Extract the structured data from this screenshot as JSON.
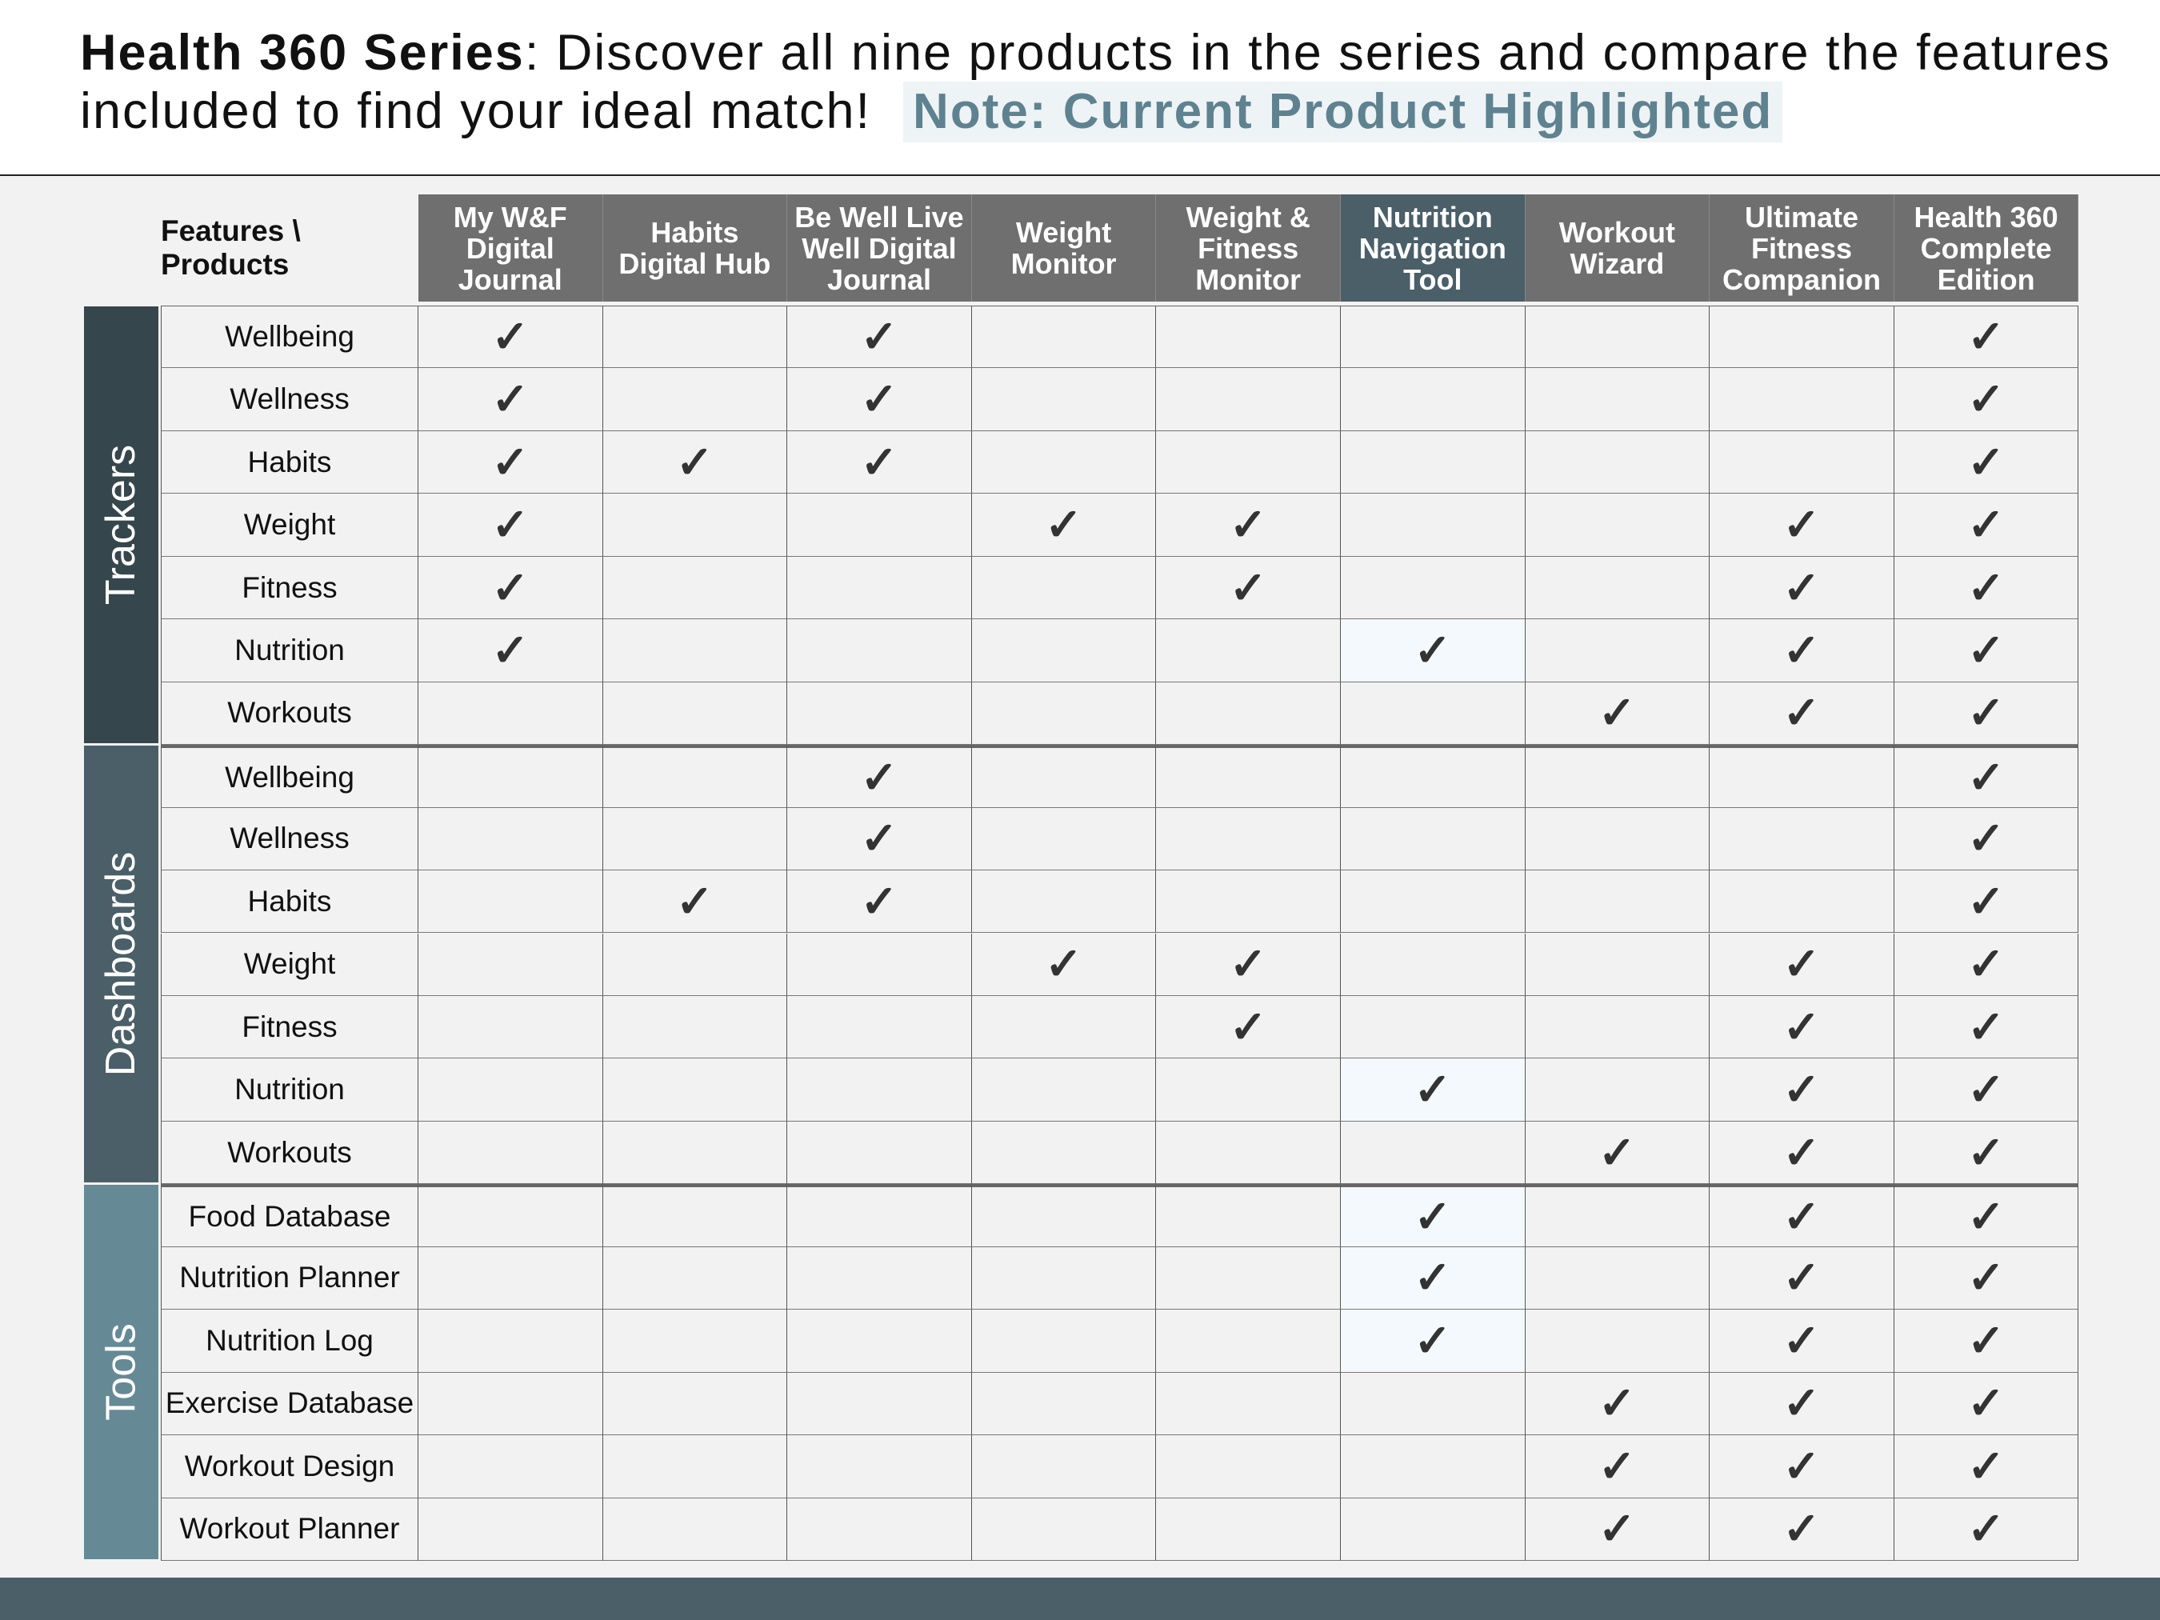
{
  "header": {
    "title_bold": "Health 360 Series",
    "title_rest": ": Discover all nine products in the series and compare the features included to find your ideal match!",
    "note": "Note: Current Product Highlighted"
  },
  "table": {
    "corner": "Features \\ Products",
    "highlight": 5,
    "columns": [
      "My W&F Digital Journal",
      "Habits Digital Hub",
      "Be Well Live Well Digital Journal",
      "Weight Monitor",
      "Weight & Fitness Monitor",
      "Nutrition Navigation Tool",
      "Workout Wizard",
      "Ultimate Fitness Companion",
      "Health 360 Complete Edition"
    ],
    "groups": [
      {
        "name": "Trackers",
        "color": "#36464d",
        "rows": [
          {
            "feature": "Wellbeing",
            "cells": [
              "✓",
              null,
              "✓",
              null,
              null,
              null,
              null,
              null,
              "✓"
            ]
          },
          {
            "feature": "Wellness",
            "cells": [
              "✓",
              null,
              "✓",
              null,
              null,
              null,
              null,
              null,
              "✓"
            ]
          },
          {
            "feature": "Habits",
            "cells": [
              "✓",
              "✓",
              "✓",
              null,
              null,
              null,
              null,
              null,
              "✓"
            ]
          },
          {
            "feature": "Weight",
            "cells": [
              "✓",
              null,
              null,
              "✓",
              "✓",
              null,
              null,
              "✓",
              "✓"
            ]
          },
          {
            "feature": "Fitness",
            "cells": [
              "✓",
              null,
              null,
              null,
              "✓",
              null,
              null,
              "✓",
              "✓"
            ]
          },
          {
            "feature": "Nutrition",
            "cells": [
              "✓",
              null,
              null,
              null,
              null,
              "✓",
              null,
              "✓",
              "✓"
            ]
          },
          {
            "feature": "Workouts",
            "cells": [
              null,
              null,
              null,
              null,
              null,
              null,
              "✓",
              "✓",
              "✓"
            ]
          }
        ]
      },
      {
        "name": "Dashboards",
        "color": "#4a5f68",
        "rows": [
          {
            "feature": "Wellbeing",
            "cells": [
              null,
              null,
              "✓",
              null,
              null,
              null,
              null,
              null,
              "✓"
            ]
          },
          {
            "feature": "Wellness",
            "cells": [
              null,
              null,
              "✓",
              null,
              null,
              null,
              null,
              null,
              "✓"
            ]
          },
          {
            "feature": "Habits",
            "cells": [
              null,
              "✓",
              "✓",
              null,
              null,
              null,
              null,
              null,
              "✓"
            ]
          },
          {
            "feature": "Weight",
            "cells": [
              null,
              null,
              null,
              "✓",
              "✓",
              null,
              null,
              "✓",
              "✓"
            ]
          },
          {
            "feature": "Fitness",
            "cells": [
              null,
              null,
              null,
              null,
              "✓",
              null,
              null,
              "✓",
              "✓"
            ]
          },
          {
            "feature": "Nutrition",
            "cells": [
              null,
              null,
              null,
              null,
              null,
              "✓",
              null,
              "✓",
              "✓"
            ]
          },
          {
            "feature": "Workouts",
            "cells": [
              null,
              null,
              null,
              null,
              null,
              null,
              "✓",
              "✓",
              "✓"
            ]
          }
        ]
      },
      {
        "name": "Tools",
        "color": "#658a96",
        "rows": [
          {
            "feature": "Food Database",
            "cells": [
              null,
              null,
              null,
              null,
              null,
              "✓",
              null,
              "✓",
              "✓"
            ]
          },
          {
            "feature": "Nutrition Planner",
            "cells": [
              null,
              null,
              null,
              null,
              null,
              "✓",
              null,
              "✓",
              "✓"
            ]
          },
          {
            "feature": "Nutrition Log",
            "cells": [
              null,
              null,
              null,
              null,
              null,
              "✓",
              null,
              "✓",
              "✓"
            ]
          },
          {
            "feature": "Exercise Database",
            "cells": [
              null,
              null,
              null,
              null,
              null,
              null,
              "✓",
              "✓",
              "✓"
            ]
          },
          {
            "feature": "Workout Design",
            "cells": [
              null,
              null,
              null,
              null,
              null,
              null,
              "✓",
              "✓",
              "✓"
            ]
          },
          {
            "feature": "Workout Planner",
            "cells": [
              null,
              null,
              null,
              null,
              null,
              null,
              "✓",
              "✓",
              "✓"
            ]
          }
        ]
      }
    ]
  }
}
